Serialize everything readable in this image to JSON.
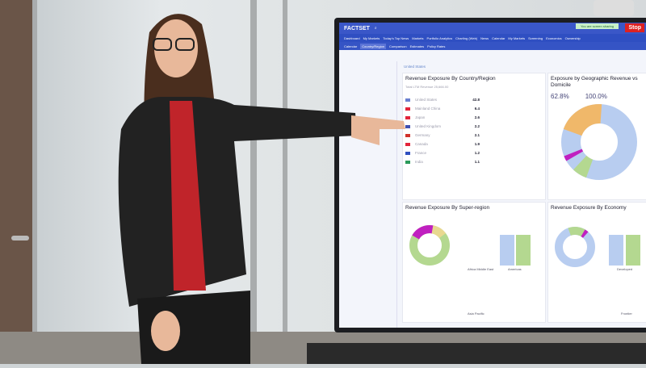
{
  "screen": {
    "logo": "FACTSET",
    "sharing_banner": "You are screen sharing",
    "stop_label": "Stop",
    "nav_main": [
      "Dashboard",
      "My Markets",
      "Today's Top News",
      "Markets",
      "Portfolio Analytics",
      "Charting (Web)",
      "News",
      "Calendar",
      "My Markets",
      "Screening",
      "Economics",
      "Ownership"
    ],
    "nav_sub": [
      "Calendar",
      "Country/Region",
      "Comparison",
      "Estimates",
      "Policy Rates"
    ],
    "nav_sub_selected": "Country/Region",
    "entity": "United States",
    "panel1_title": "Revenue Exposure By Country/Region",
    "panel1_sub": "Total LTM Revenue 25,666.00",
    "countries": [
      {
        "name": "United States",
        "value": "42.8",
        "flag": "#6a7fd0"
      },
      {
        "name": "Mainland China",
        "value": "6.4",
        "flag": "#e2233a"
      },
      {
        "name": "Japan",
        "value": "2.6",
        "flag": "#e2233a"
      },
      {
        "name": "United Kingdom",
        "value": "2.2",
        "flag": "#4050b0"
      },
      {
        "name": "Germany",
        "value": "2.1",
        "flag": "#d0302a"
      },
      {
        "name": "Canada",
        "value": "1.9",
        "flag": "#e2233a"
      },
      {
        "name": "France",
        "value": "1.2",
        "flag": "#3050c0"
      },
      {
        "name": "India",
        "value": "1.1",
        "flag": "#2a9a5a"
      }
    ],
    "panel2_title": "Exposure by Geographic Revenue vs Domicile",
    "stat1": "62.8%",
    "stat2": "100.0%",
    "panel3_title": "Revenue Exposure By Super-region",
    "panel4_title": "Revenue Exposure By Economy",
    "bar_labels": [
      "Africa Middle East",
      "Americas",
      "Asia Pacific"
    ],
    "bar_labels2": [
      "Developed",
      "Frontier"
    ],
    "donut_colors": [
      "#b8cdf0",
      "#f0b86a",
      "#b4d890",
      "#c020c0",
      "#e8d890"
    ]
  }
}
